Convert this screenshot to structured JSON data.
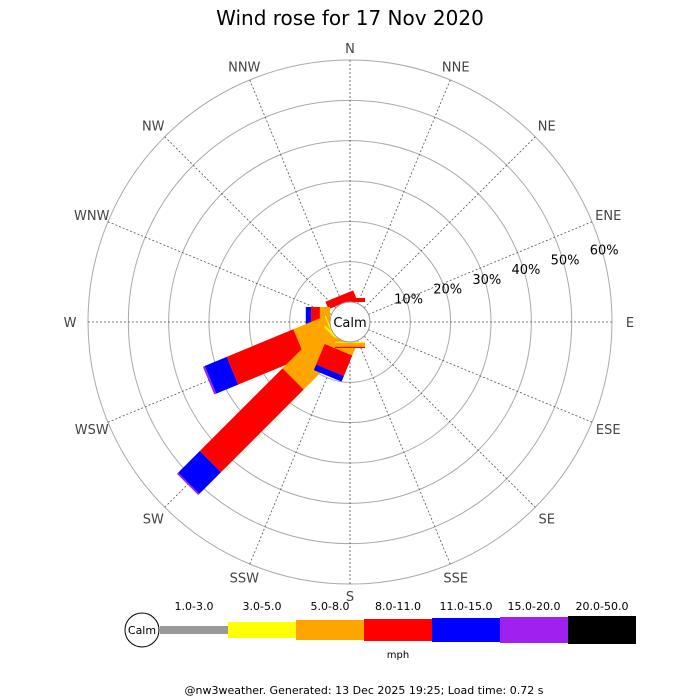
{
  "chart_data": {
    "type": "wind-rose",
    "title": "Wind rose for 17 Nov 2020",
    "directions": [
      "N",
      "NNE",
      "NE",
      "ENE",
      "E",
      "ESE",
      "SE",
      "SSE",
      "S",
      "SSW",
      "SW",
      "WSW",
      "W",
      "WNW",
      "NW",
      "NNW"
    ],
    "radial_ticks": [
      "10%",
      "20%",
      "30%",
      "40%",
      "50%",
      "60%"
    ],
    "radial_max": 60,
    "calm_label": "Calm",
    "unit": "mph",
    "bins": [
      {
        "label": "1.0-3.0",
        "color": "#999999"
      },
      {
        "label": "3.0-5.0",
        "color": "#ffff00"
      },
      {
        "label": "5.0-8.0",
        "color": "#ffa500"
      },
      {
        "label": "8.0-11.0",
        "color": "#ff0000"
      },
      {
        "label": "11.0-15.0",
        "color": "#0000ff"
      },
      {
        "label": "15.0-20.0",
        "color": "#a020f0"
      },
      {
        "label": "20.0-50.0",
        "color": "#000000"
      }
    ],
    "series_percent": {
      "N": [
        0,
        0,
        0,
        1.0,
        0,
        0,
        0
      ],
      "NNW": [
        0,
        0,
        0,
        2.0,
        0,
        0,
        0
      ],
      "W": [
        0,
        0,
        2.5,
        2.2,
        1.3,
        0,
        0
      ],
      "WSW": [
        0,
        0.3,
        8.4,
        17.9,
        5.9,
        0.5,
        0
      ],
      "SW": [
        0,
        0.5,
        14.5,
        29.0,
        7.6,
        0.4,
        0
      ],
      "SSW": [
        0,
        0,
        2.5,
        5.5,
        1.5,
        0,
        0
      ],
      "S": [
        0,
        0.2,
        1.0,
        0.3,
        0,
        0,
        0
      ]
    }
  },
  "footer": "@nw3weather. Generated: 13 Dec 2025 19:25; Load time: 0.72 s"
}
